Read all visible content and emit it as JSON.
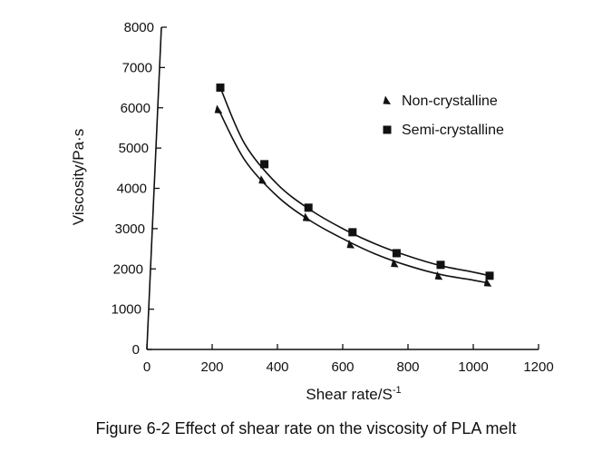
{
  "chart_data": {
    "type": "scatter",
    "xlabel": "Shear rate/S",
    "xlabel_sup": "-1",
    "ylabel": "Viscosity/Pa·s",
    "xlim": [
      0,
      1200
    ],
    "ylim": [
      0,
      8000
    ],
    "xticks": [
      0,
      200,
      400,
      600,
      800,
      1000,
      1200
    ],
    "yticks": [
      0,
      1000,
      2000,
      3000,
      4000,
      5000,
      6000,
      7000,
      8000
    ],
    "grid": false,
    "legend_position": "top-right",
    "fitted_curves": true,
    "series": [
      {
        "name": "Non-crystalline",
        "marker": "triangle",
        "color": "#111111",
        "x": [
          220,
          355,
          490,
          625,
          760,
          895,
          1045
        ],
        "y": [
          5950,
          4200,
          3270,
          2600,
          2130,
          1820,
          1650
        ],
        "fit": [
          [
            220,
            5950
          ],
          [
            300,
            4700
          ],
          [
            400,
            3800
          ],
          [
            500,
            3200
          ],
          [
            600,
            2750
          ],
          [
            700,
            2370
          ],
          [
            800,
            2080
          ],
          [
            900,
            1860
          ],
          [
            1000,
            1720
          ],
          [
            1045,
            1650
          ]
        ]
      },
      {
        "name": "Semi-crystalline",
        "marker": "square",
        "color": "#111111",
        "x": [
          225,
          360,
          495,
          630,
          765,
          900,
          1050
        ],
        "y": [
          6500,
          4600,
          3520,
          2910,
          2390,
          2100,
          1830
        ],
        "fit": [
          [
            225,
            6500
          ],
          [
            300,
            5100
          ],
          [
            400,
            4100
          ],
          [
            500,
            3470
          ],
          [
            600,
            3000
          ],
          [
            700,
            2620
          ],
          [
            800,
            2320
          ],
          [
            900,
            2080
          ],
          [
            1000,
            1920
          ],
          [
            1050,
            1830
          ]
        ]
      }
    ]
  },
  "caption": "Figure 6-2 Effect of shear rate on the viscosity of PLA melt"
}
